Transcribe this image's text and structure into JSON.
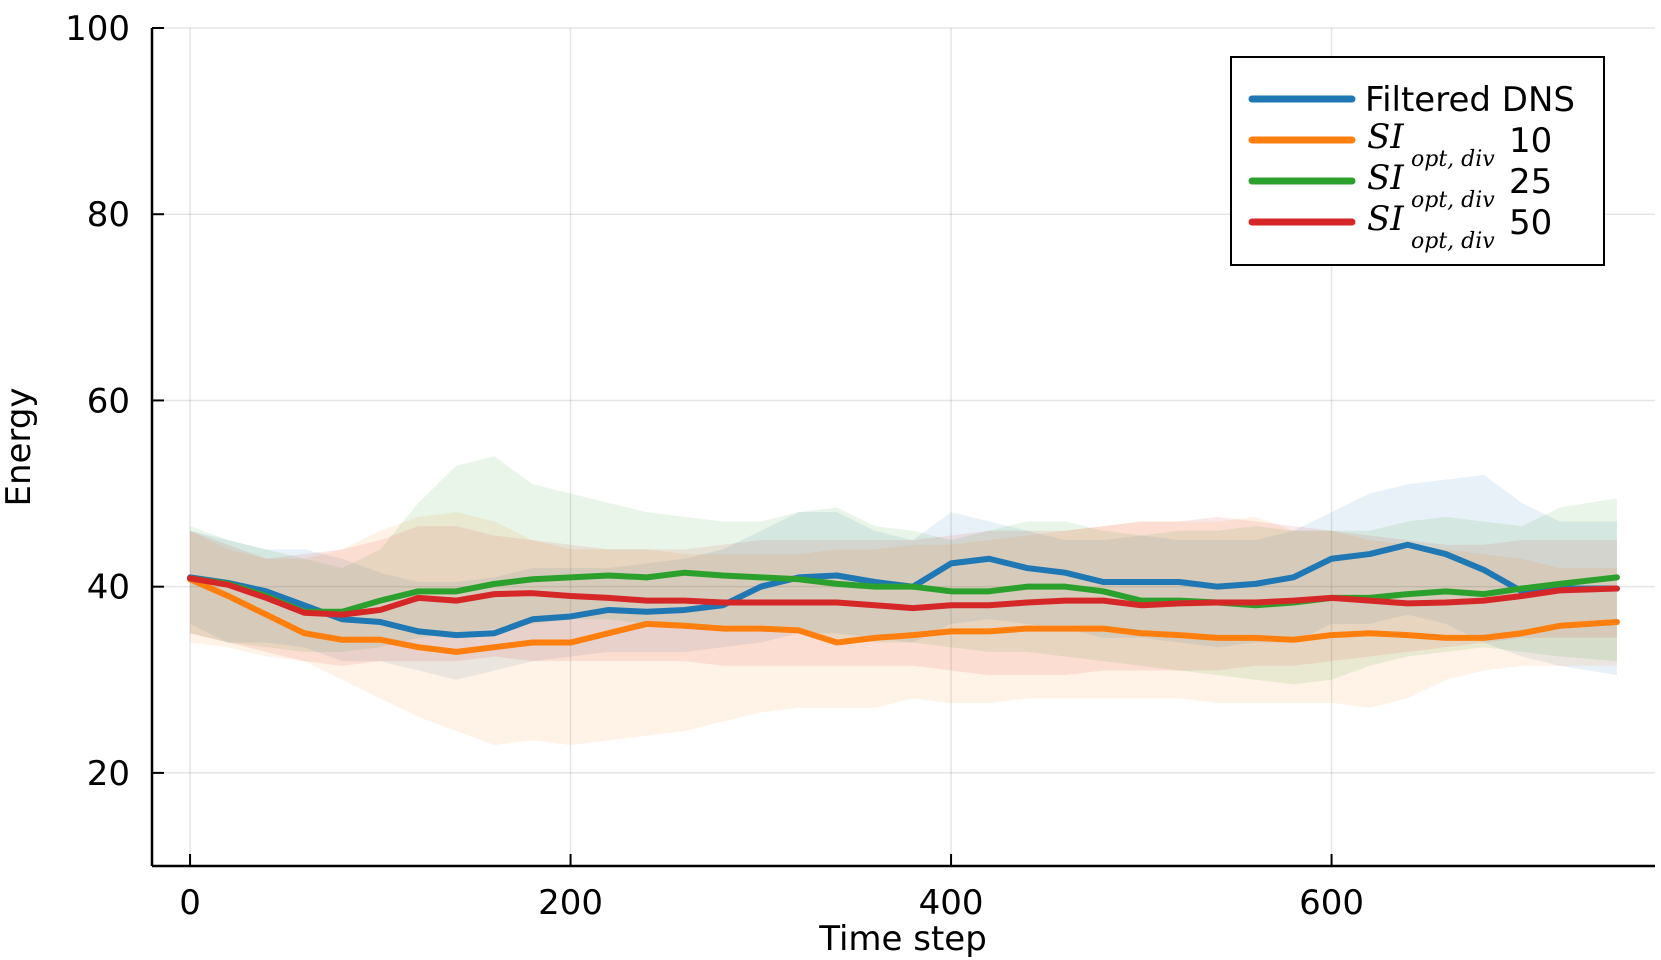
{
  "chart_data": {
    "type": "line",
    "title": "",
    "xlabel": "Time step",
    "ylabel": "Energy",
    "xlim": [
      -20,
      770
    ],
    "ylim": [
      10,
      100
    ],
    "xticks": [
      0,
      200,
      400,
      600
    ],
    "yticks": [
      20,
      40,
      60,
      80,
      100
    ],
    "grid": true,
    "legend_position": "top-right",
    "x": [
      0,
      20,
      40,
      60,
      80,
      100,
      120,
      140,
      160,
      180,
      200,
      220,
      240,
      260,
      280,
      300,
      320,
      340,
      360,
      380,
      400,
      420,
      440,
      460,
      480,
      500,
      520,
      540,
      560,
      580,
      600,
      620,
      640,
      660,
      680,
      700,
      720,
      750
    ],
    "series": [
      {
        "name": "Filtered DNS",
        "legend_prefix": "",
        "legend_suffix": "Filtered DNS",
        "color": "#1f77b4",
        "values": [
          41.0,
          40.4,
          39.5,
          38.0,
          36.5,
          36.2,
          35.2,
          34.8,
          35.0,
          36.5,
          36.8,
          37.5,
          37.3,
          37.5,
          38.0,
          40.0,
          41.0,
          41.2,
          40.5,
          40.0,
          42.5,
          43.0,
          42.0,
          41.5,
          40.5,
          40.5,
          40.5,
          40.0,
          40.3,
          41.0,
          43.0,
          43.5,
          44.5,
          43.5,
          41.8,
          39.5,
          39.8,
          39.8
        ],
        "band_upper": [
          46.0,
          45.0,
          44.0,
          44.0,
          43.0,
          41.5,
          40.5,
          40.5,
          41.0,
          42.0,
          42.0,
          42.0,
          42.5,
          43.0,
          44.0,
          46.0,
          48.0,
          48.0,
          46.0,
          45.0,
          48.0,
          47.0,
          46.0,
          45.0,
          45.0,
          45.5,
          45.0,
          45.0,
          45.0,
          46.0,
          48.0,
          50.0,
          51.0,
          51.5,
          52.0,
          49.0,
          47.0,
          47.0
        ],
        "band_lower": [
          36.0,
          34.0,
          34.0,
          33.5,
          32.0,
          32.0,
          31.0,
          30.0,
          31.0,
          32.0,
          32.5,
          33.0,
          33.0,
          33.0,
          33.5,
          34.0,
          35.0,
          35.0,
          34.5,
          34.0,
          36.0,
          36.5,
          36.0,
          35.5,
          34.5,
          34.5,
          34.0,
          33.5,
          34.0,
          34.0,
          36.0,
          36.0,
          37.0,
          36.0,
          34.0,
          32.5,
          31.5,
          30.5
        ]
      },
      {
        "name": "SI_opt,div 10",
        "legend_prefix": "SI",
        "legend_sub": "opt, div",
        "legend_suffix": "10",
        "color": "#ff7f0e",
        "values": [
          40.8,
          39.0,
          37.0,
          35.0,
          34.3,
          34.3,
          33.5,
          33.0,
          33.5,
          34.0,
          34.0,
          35.0,
          36.0,
          35.8,
          35.5,
          35.5,
          35.3,
          34.0,
          34.5,
          34.8,
          35.2,
          35.2,
          35.5,
          35.5,
          35.5,
          35.0,
          34.8,
          34.5,
          34.5,
          34.3,
          34.8,
          35.0,
          34.8,
          34.5,
          34.5,
          35.0,
          35.8,
          36.2
        ],
        "band_upper": [
          46.0,
          44.0,
          43.0,
          43.0,
          44.0,
          46.0,
          47.5,
          48.0,
          47.0,
          45.0,
          44.0,
          44.0,
          44.0,
          43.5,
          43.5,
          43.5,
          43.5,
          44.0,
          44.0,
          44.5,
          44.5,
          45.0,
          45.5,
          46.0,
          46.5,
          47.0,
          47.0,
          47.0,
          47.5,
          46.0,
          46.0,
          45.0,
          44.5,
          44.0,
          43.5,
          43.0,
          42.0,
          42.0
        ],
        "band_lower": [
          34.0,
          33.5,
          32.5,
          32.0,
          30.0,
          28.0,
          26.0,
          24.5,
          23.0,
          23.5,
          23.0,
          23.5,
          24.0,
          24.5,
          25.5,
          26.5,
          27.0,
          27.0,
          27.0,
          28.0,
          27.5,
          27.5,
          28.0,
          28.0,
          28.0,
          28.0,
          28.0,
          27.5,
          27.5,
          27.5,
          27.5,
          27.0,
          28.0,
          30.0,
          31.0,
          31.5,
          31.5,
          31.5
        ]
      },
      {
        "name": "SI_opt,div 25",
        "legend_prefix": "SI",
        "legend_sub": "opt, div",
        "legend_suffix": "25",
        "color": "#2ca02c",
        "values": [
          40.9,
          40.3,
          39.0,
          37.3,
          37.3,
          38.5,
          39.5,
          39.5,
          40.3,
          40.8,
          41.0,
          41.2,
          41.0,
          41.5,
          41.2,
          41.0,
          40.8,
          40.3,
          40.0,
          40.0,
          39.5,
          39.5,
          40.0,
          40.0,
          39.5,
          38.5,
          38.5,
          38.3,
          38.0,
          38.3,
          38.8,
          38.8,
          39.2,
          39.5,
          39.2,
          39.8,
          40.3,
          41.0
        ],
        "band_upper": [
          46.5,
          45.0,
          44.0,
          43.0,
          42.0,
          44.0,
          49.0,
          53.0,
          54.0,
          51.0,
          50.0,
          49.0,
          48.0,
          47.5,
          47.0,
          47.0,
          48.0,
          48.5,
          46.5,
          46.0,
          45.0,
          46.0,
          47.0,
          47.0,
          46.0,
          45.5,
          46.0,
          46.0,
          46.5,
          46.0,
          46.0,
          46.0,
          47.0,
          47.5,
          47.0,
          46.5,
          48.5,
          49.5
        ],
        "band_lower": [
          35.0,
          34.0,
          33.5,
          33.0,
          33.0,
          33.5,
          34.5,
          35.0,
          35.5,
          36.0,
          36.5,
          36.5,
          36.0,
          36.0,
          35.5,
          35.5,
          35.0,
          34.5,
          34.0,
          34.0,
          33.5,
          33.0,
          33.0,
          32.5,
          32.0,
          31.5,
          31.0,
          30.5,
          30.0,
          29.5,
          30.0,
          31.5,
          32.5,
          33.0,
          33.5,
          33.0,
          32.5,
          32.0
        ]
      },
      {
        "name": "SI_opt,div 50",
        "legend_prefix": "SI",
        "legend_sub": "opt, div",
        "legend_suffix": "50",
        "color": "#d62728",
        "values": [
          40.9,
          40.2,
          38.8,
          37.2,
          37.0,
          37.5,
          38.8,
          38.5,
          39.2,
          39.3,
          39.0,
          38.8,
          38.5,
          38.5,
          38.3,
          38.3,
          38.3,
          38.3,
          38.0,
          37.7,
          38.0,
          38.0,
          38.3,
          38.5,
          38.5,
          38.0,
          38.2,
          38.3,
          38.3,
          38.5,
          38.8,
          38.5,
          38.2,
          38.3,
          38.5,
          39.0,
          39.6,
          39.8
        ],
        "band_upper": [
          46.0,
          44.5,
          43.0,
          43.5,
          44.0,
          45.0,
          46.5,
          46.5,
          45.5,
          45.0,
          44.5,
          44.0,
          44.0,
          44.0,
          44.5,
          45.0,
          45.0,
          45.0,
          45.0,
          45.0,
          45.5,
          46.0,
          46.0,
          46.0,
          46.5,
          47.0,
          47.0,
          47.5,
          47.0,
          46.5,
          46.0,
          45.5,
          45.0,
          44.5,
          44.5,
          45.0,
          45.0,
          45.0
        ],
        "band_lower": [
          35.0,
          34.0,
          33.0,
          32.0,
          31.5,
          32.0,
          32.0,
          32.0,
          32.5,
          32.0,
          32.0,
          32.0,
          32.0,
          32.0,
          31.5,
          31.5,
          31.5,
          31.5,
          31.5,
          31.5,
          31.0,
          30.5,
          30.5,
          30.5,
          31.0,
          31.0,
          31.0,
          31.0,
          31.5,
          31.5,
          32.0,
          32.5,
          33.0,
          33.5,
          34.0,
          34.5,
          34.5,
          34.5
        ]
      }
    ]
  }
}
